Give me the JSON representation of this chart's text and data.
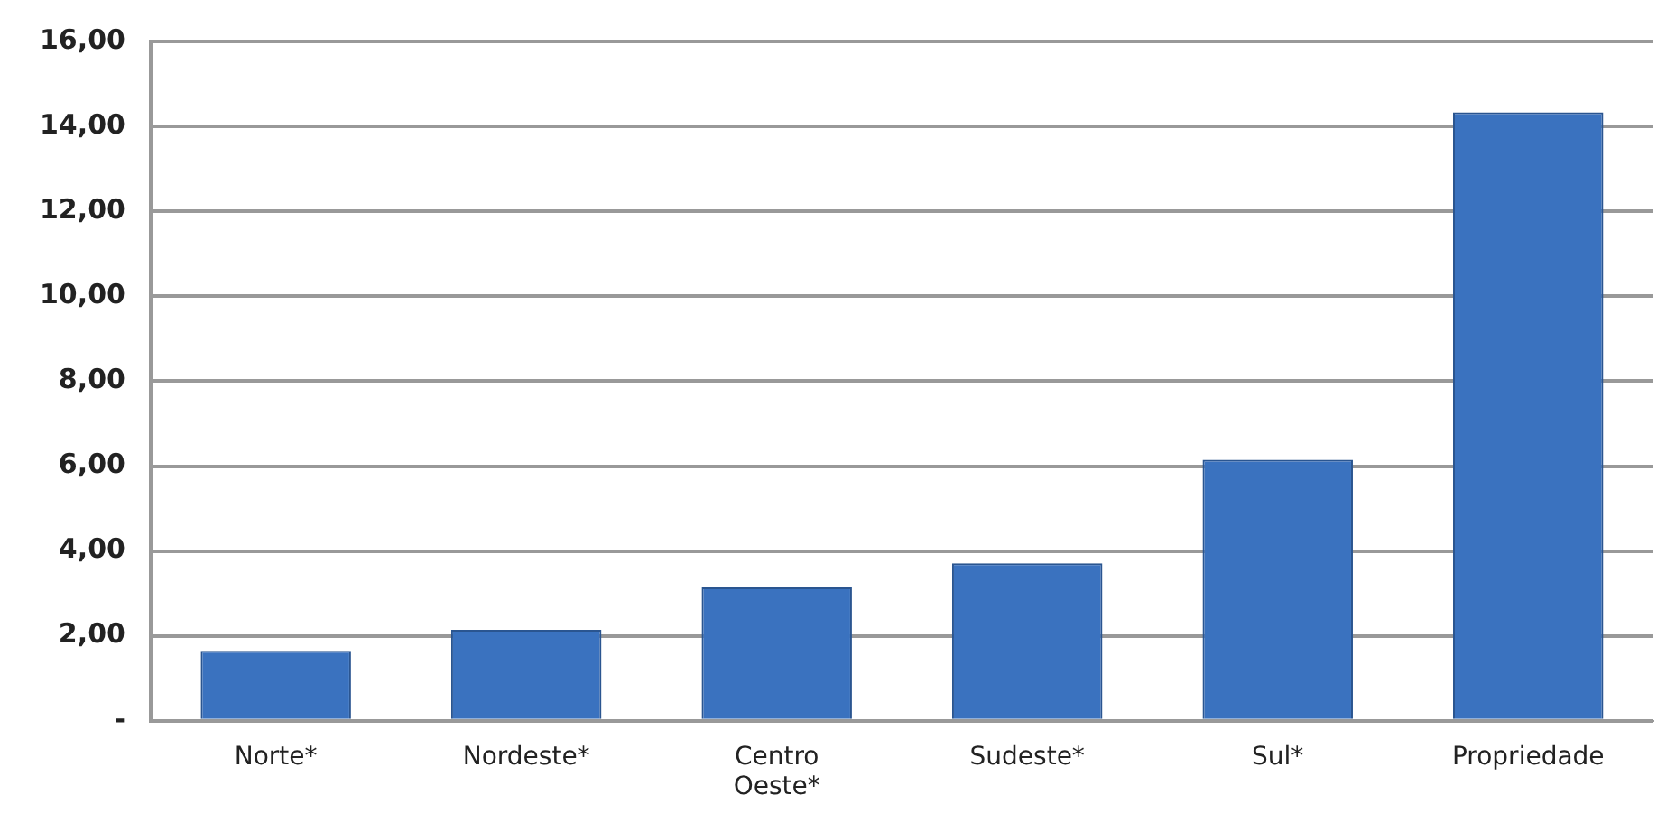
{
  "chart_data": {
    "type": "bar",
    "categories": [
      "Norte*",
      "Nordeste*",
      "Centro Oeste*",
      "Sudeste*",
      "Sul*",
      "Propriedade"
    ],
    "values": [
      1.65,
      2.14,
      3.14,
      3.71,
      6.15,
      14.33
    ],
    "color": "#3a72bf",
    "ylim": [
      0,
      16
    ],
    "yticks": [
      {
        "value": 0,
        "label": "-"
      },
      {
        "value": 2,
        "label": "2,00"
      },
      {
        "value": 4,
        "label": "4,00"
      },
      {
        "value": 6,
        "label": "6,00"
      },
      {
        "value": 8,
        "label": "8,00"
      },
      {
        "value": 10,
        "label": "10,00"
      },
      {
        "value": 12,
        "label": "12,00"
      },
      {
        "value": 14,
        "label": "14,00"
      },
      {
        "value": 16,
        "label": "16,00"
      }
    ],
    "grid": "y",
    "legend": false
  }
}
